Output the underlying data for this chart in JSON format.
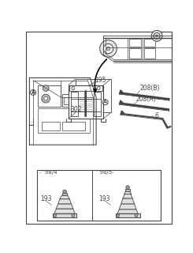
{
  "bg_color": "#ffffff",
  "line_color": "#444444",
  "labels": {
    "302": "302",
    "195": "195",
    "208B": "208(B)",
    "208A": "208(A)",
    "6": "6",
    "193_left": "193",
    "193_right": "193",
    "year_left": "-’ 98/4",
    "year_right": "’ 98/5-"
  }
}
